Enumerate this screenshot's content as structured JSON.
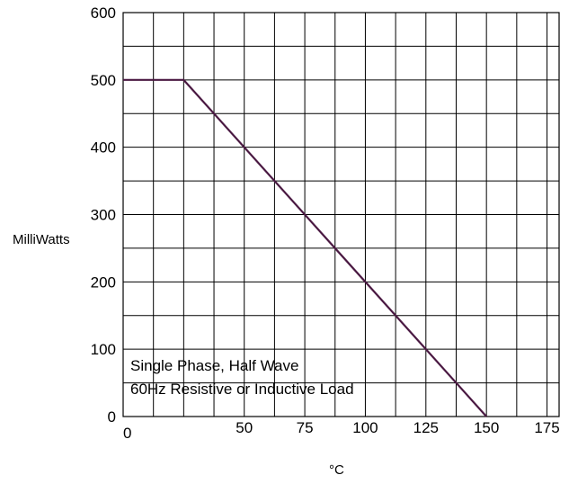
{
  "chart_data": {
    "type": "line",
    "title": "",
    "xlabel": "°C",
    "ylabel": "MilliWatts",
    "xlim": [
      0,
      180
    ],
    "ylim": [
      0,
      600
    ],
    "x_grid_step": 12.5,
    "y_grid_step": 50,
    "grid": true,
    "xticks": [
      0,
      50,
      75,
      100,
      125,
      150,
      175
    ],
    "yticks": [
      0,
      100,
      200,
      300,
      400,
      500,
      600
    ],
    "series": [
      {
        "color": "#4a1942",
        "x": [
          0,
          25,
          150
        ],
        "y": [
          500,
          500,
          0
        ]
      }
    ],
    "annotations": [
      "Single Phase, Half Wave",
      "60Hz Resistive or Inductive Load"
    ]
  }
}
